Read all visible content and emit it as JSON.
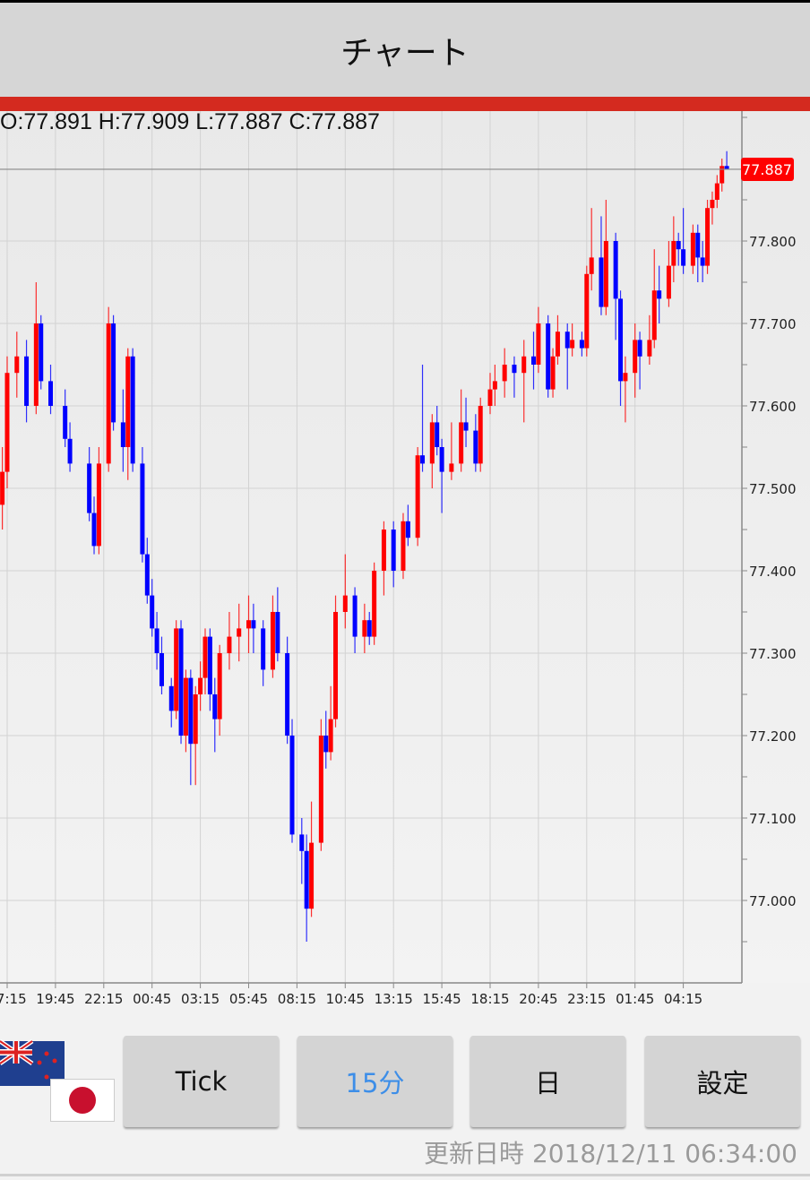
{
  "header": {
    "title": "チャート"
  },
  "ohlc_text": "O:77.891 H:77.909 L:77.887 C:77.887",
  "current_price_label": "77.887",
  "colors": {
    "up": "#ff0000",
    "down": "#0000ff",
    "accent_bar": "#d42a1f",
    "price_label_bg": "#ff0000",
    "active_button": "#3d8ee8"
  },
  "currency_pair_icons": [
    "nz-flag-icon",
    "jp-flag-icon"
  ],
  "buttons": [
    {
      "label": "Tick",
      "active": false
    },
    {
      "label": "15分",
      "active": true
    },
    {
      "label": "日",
      "active": false
    },
    {
      "label": "設定",
      "active": false
    }
  ],
  "updated": "更新日時 2018/12/11 06:34:00",
  "chart_data": {
    "type": "candlestick",
    "interval": "15分",
    "y_ticks": [
      "77.000",
      "77.100",
      "77.200",
      "77.300",
      "77.400",
      "77.500",
      "77.600",
      "77.700",
      "77.800"
    ],
    "x_ticks": [
      "17:15",
      "19:45",
      "22:15",
      "00:45",
      "03:15",
      "05:45",
      "08:15",
      "10:45",
      "13:15",
      "15:45",
      "18:15",
      "20:45",
      "23:15",
      "01:45",
      "04:15"
    ],
    "ylim": [
      76.91,
      77.96
    ],
    "grid": true,
    "current_price": 77.887,
    "candles": [
      [
        "17:00",
        77.48,
        77.55,
        77.45,
        77.52
      ],
      [
        "17:15",
        77.52,
        77.66,
        77.5,
        77.64
      ],
      [
        "17:45",
        77.64,
        77.69,
        77.61,
        77.66
      ],
      [
        "18:15",
        77.66,
        77.68,
        77.58,
        77.6
      ],
      [
        "18:45",
        77.6,
        77.75,
        77.59,
        77.7
      ],
      [
        "19:00",
        77.7,
        77.71,
        77.62,
        77.63
      ],
      [
        "19:30",
        77.63,
        77.65,
        77.59,
        77.6
      ],
      [
        "20:15",
        77.6,
        77.62,
        77.55,
        77.56
      ],
      [
        "20:30",
        77.56,
        77.58,
        77.52,
        77.53
      ],
      [
        "21:30",
        77.53,
        77.55,
        77.46,
        77.47
      ],
      [
        "21:45",
        77.47,
        77.49,
        77.42,
        77.43
      ],
      [
        "22:00",
        77.43,
        77.55,
        77.42,
        77.53
      ],
      [
        "22:30",
        77.53,
        77.72,
        77.52,
        77.7
      ],
      [
        "22:45",
        77.7,
        77.71,
        77.57,
        77.58
      ],
      [
        "23:15",
        77.58,
        77.62,
        77.52,
        77.55
      ],
      [
        "23:30",
        77.55,
        77.67,
        77.51,
        77.66
      ],
      [
        "23:45",
        77.66,
        77.67,
        77.52,
        77.53
      ],
      [
        "00:15",
        77.53,
        77.55,
        77.41,
        77.42
      ],
      [
        "00:30",
        77.42,
        77.44,
        77.36,
        77.37
      ],
      [
        "00:45",
        77.37,
        77.39,
        77.32,
        77.33
      ],
      [
        "01:00",
        77.33,
        77.35,
        77.28,
        77.3
      ],
      [
        "01:15",
        77.3,
        77.32,
        77.25,
        77.26
      ],
      [
        "01:45",
        77.26,
        77.27,
        77.21,
        77.23
      ],
      [
        "02:00",
        77.23,
        77.34,
        77.22,
        77.33
      ],
      [
        "02:15",
        77.33,
        77.34,
        77.19,
        77.2
      ],
      [
        "02:30",
        77.2,
        77.28,
        77.18,
        77.27
      ],
      [
        "02:45",
        77.27,
        77.28,
        77.14,
        77.19
      ],
      [
        "03:00",
        77.19,
        77.26,
        77.14,
        77.25
      ],
      [
        "03:15",
        77.25,
        77.29,
        77.23,
        77.27
      ],
      [
        "03:30",
        77.27,
        77.33,
        77.25,
        77.32
      ],
      [
        "03:45",
        77.32,
        77.33,
        77.23,
        77.25
      ],
      [
        "04:00",
        77.25,
        77.27,
        77.18,
        77.22
      ],
      [
        "04:15",
        77.22,
        77.31,
        77.2,
        77.3
      ],
      [
        "04:45",
        77.3,
        77.35,
        77.28,
        77.32
      ],
      [
        "05:15",
        77.32,
        77.36,
        77.29,
        77.33
      ],
      [
        "05:45",
        77.33,
        77.37,
        77.3,
        77.34
      ],
      [
        "06:00",
        77.34,
        77.36,
        77.3,
        77.33
      ],
      [
        "06:30",
        77.33,
        77.34,
        77.26,
        77.28
      ],
      [
        "07:00",
        77.28,
        77.37,
        77.27,
        77.35
      ],
      [
        "07:15",
        77.35,
        77.38,
        77.29,
        77.3
      ],
      [
        "07:45",
        77.3,
        77.32,
        77.19,
        77.2
      ],
      [
        "08:00",
        77.2,
        77.22,
        77.07,
        77.08
      ],
      [
        "08:30",
        77.08,
        77.1,
        77.02,
        77.06
      ],
      [
        "08:45",
        77.06,
        77.08,
        76.95,
        76.99
      ],
      [
        "09:00",
        76.99,
        77.12,
        76.98,
        77.07
      ],
      [
        "09:30",
        77.07,
        77.22,
        77.06,
        77.2
      ],
      [
        "09:45",
        77.2,
        77.23,
        77.16,
        77.18
      ],
      [
        "10:00",
        77.18,
        77.26,
        77.17,
        77.22
      ],
      [
        "10:15",
        77.22,
        77.37,
        77.21,
        77.35
      ],
      [
        "10:45",
        77.35,
        77.42,
        77.33,
        77.37
      ],
      [
        "11:15",
        77.37,
        77.38,
        77.3,
        77.32
      ],
      [
        "11:45",
        77.32,
        77.36,
        77.3,
        77.34
      ],
      [
        "12:00",
        77.34,
        77.35,
        77.31,
        77.32
      ],
      [
        "12:15",
        77.32,
        77.41,
        77.31,
        77.4
      ],
      [
        "12:45",
        77.4,
        77.46,
        77.37,
        77.45
      ],
      [
        "13:15",
        77.45,
        77.46,
        77.38,
        77.4
      ],
      [
        "13:45",
        77.4,
        77.47,
        77.39,
        77.46
      ],
      [
        "14:00",
        77.46,
        77.48,
        77.43,
        77.44
      ],
      [
        "14:30",
        77.44,
        77.55,
        77.43,
        77.54
      ],
      [
        "14:45",
        77.54,
        77.65,
        77.52,
        77.53
      ],
      [
        "15:15",
        77.53,
        77.59,
        77.5,
        77.58
      ],
      [
        "15:30",
        77.58,
        77.6,
        77.54,
        77.55
      ],
      [
        "15:45",
        77.55,
        77.56,
        77.47,
        77.52
      ],
      [
        "16:15",
        77.52,
        77.58,
        77.51,
        77.53
      ],
      [
        "16:45",
        77.53,
        77.62,
        77.52,
        77.58
      ],
      [
        "17:00",
        77.58,
        77.61,
        77.55,
        77.57
      ],
      [
        "17:30",
        77.57,
        77.59,
        77.52,
        77.53
      ],
      [
        "17:45",
        77.53,
        77.61,
        77.52,
        77.6
      ],
      [
        "18:15",
        77.6,
        77.64,
        77.59,
        77.62
      ],
      [
        "18:30",
        77.62,
        77.65,
        77.6,
        77.63
      ],
      [
        "19:00",
        77.63,
        77.67,
        77.61,
        77.65
      ],
      [
        "19:30",
        77.65,
        77.66,
        77.61,
        77.64
      ],
      [
        "20:00",
        77.64,
        77.68,
        77.58,
        77.66
      ],
      [
        "20:30",
        77.66,
        77.69,
        77.62,
        77.65
      ],
      [
        "20:45",
        77.65,
        77.72,
        77.64,
        77.7
      ],
      [
        "21:15",
        77.7,
        77.71,
        77.61,
        77.62
      ],
      [
        "21:30",
        77.62,
        77.67,
        77.61,
        77.66
      ],
      [
        "21:45",
        77.66,
        77.71,
        77.65,
        77.69
      ],
      [
        "22:15",
        77.69,
        77.7,
        77.62,
        77.67
      ],
      [
        "22:30",
        77.67,
        77.7,
        77.66,
        77.68
      ],
      [
        "23:00",
        77.68,
        77.69,
        77.66,
        77.67
      ],
      [
        "23:15",
        77.67,
        77.77,
        77.66,
        77.76
      ],
      [
        "23:30",
        77.76,
        77.84,
        77.74,
        77.78
      ],
      [
        "00:00",
        77.78,
        77.83,
        77.71,
        77.72
      ],
      [
        "00:15",
        77.72,
        77.85,
        77.71,
        77.8
      ],
      [
        "00:45",
        77.8,
        77.81,
        77.68,
        77.73
      ],
      [
        "01:00",
        77.73,
        77.74,
        77.6,
        77.63
      ],
      [
        "01:15",
        77.63,
        77.66,
        77.58,
        77.64
      ],
      [
        "01:45",
        77.64,
        77.7,
        77.61,
        77.68
      ],
      [
        "02:00",
        77.68,
        77.69,
        77.62,
        77.66
      ],
      [
        "02:30",
        77.66,
        77.71,
        77.65,
        77.68
      ],
      [
        "02:45",
        77.68,
        77.79,
        77.67,
        77.74
      ],
      [
        "03:00",
        77.74,
        77.77,
        77.7,
        77.73
      ],
      [
        "03:30",
        77.73,
        77.8,
        77.72,
        77.77
      ],
      [
        "03:45",
        77.77,
        77.83,
        77.75,
        77.8
      ],
      [
        "04:00",
        77.8,
        77.81,
        77.77,
        77.79
      ],
      [
        "04:15",
        77.79,
        77.84,
        77.76,
        77.77
      ],
      [
        "04:45",
        77.77,
        77.82,
        77.76,
        77.81
      ],
      [
        "05:00",
        77.81,
        77.82,
        77.75,
        77.78
      ],
      [
        "05:15",
        77.78,
        77.8,
        77.75,
        77.77
      ],
      [
        "05:30",
        77.77,
        77.85,
        77.76,
        77.84
      ],
      [
        "05:45",
        77.84,
        77.86,
        77.82,
        77.85
      ],
      [
        "06:00",
        77.85,
        77.88,
        77.84,
        77.87
      ],
      [
        "06:15",
        77.87,
        77.9,
        77.86,
        77.891
      ],
      [
        "06:30",
        77.891,
        77.909,
        77.887,
        77.887
      ]
    ]
  }
}
